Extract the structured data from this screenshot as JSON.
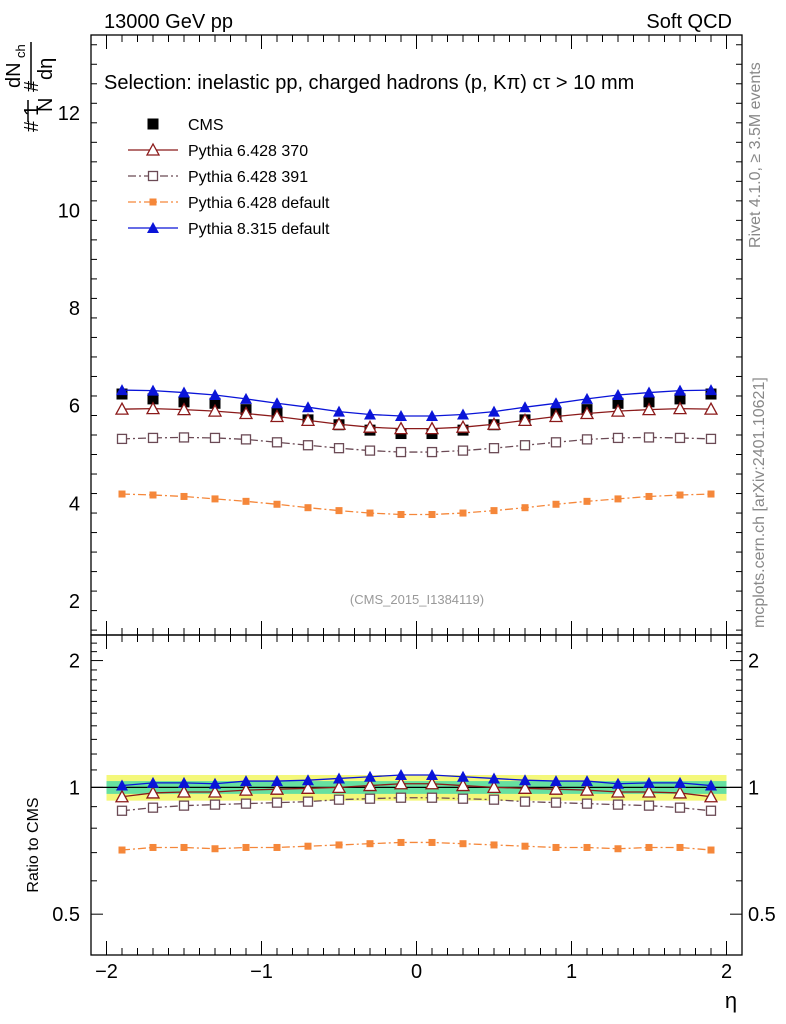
{
  "header": {
    "left": "13000 GeV pp",
    "right": "Soft QCD"
  },
  "selection_label": "Selection: inelastic pp, charged hadrons (p, Kπ) cτ > 10 mm",
  "side_labels": {
    "rivet": "Rivet 4.1.0, ≥ 3.5M events",
    "mcplots": "mcplots.cern.ch [arXiv:2401.10621]"
  },
  "analysis_tag": "(CMS_2015_I1384119)",
  "colors": {
    "cms": "#000000",
    "p370": "#8b1a1a",
    "p391": "#6b4a55",
    "p6def": "#f5873a",
    "p8def": "#0a14d8",
    "band_outer": "#f4f87a",
    "band_inner": "#66e0a0"
  },
  "chart_data": [
    {
      "type": "scatter",
      "panel": "main",
      "title": "",
      "xlabel": "η",
      "ylabel": "1/N dN_ch/dη",
      "xlim": [
        -2.1,
        2.1
      ],
      "ylim": [
        1.3,
        13.6
      ],
      "yticks": [
        "2",
        "4",
        "6",
        "8",
        "10",
        "12"
      ],
      "x": [
        -1.9,
        -1.7,
        -1.5,
        -1.3,
        -1.1,
        -0.9,
        -0.7,
        -0.5,
        -0.3,
        -0.1,
        0.1,
        0.3,
        0.5,
        0.7,
        0.9,
        1.1,
        1.3,
        1.5,
        1.7,
        1.9
      ],
      "series": [
        {
          "key": "cms",
          "name": "CMS",
          "marker": "filled-square",
          "values": [
            6.24,
            6.14,
            6.08,
            6.05,
            5.92,
            5.84,
            5.71,
            5.61,
            5.5,
            5.43,
            5.43,
            5.5,
            5.61,
            5.71,
            5.84,
            5.92,
            6.05,
            6.08,
            6.14,
            6.24
          ]
        },
        {
          "key": "p370",
          "name": "Pythia 6.428 370",
          "marker": "open-triangle",
          "dash": "",
          "values": [
            5.93,
            5.94,
            5.92,
            5.89,
            5.84,
            5.78,
            5.7,
            5.62,
            5.56,
            5.53,
            5.53,
            5.56,
            5.62,
            5.7,
            5.78,
            5.84,
            5.89,
            5.92,
            5.94,
            5.93
          ]
        },
        {
          "key": "p391",
          "name": "Pythia 6.428 391",
          "marker": "open-square",
          "dash": "8,3,2,3",
          "values": [
            5.32,
            5.34,
            5.35,
            5.34,
            5.31,
            5.25,
            5.19,
            5.13,
            5.08,
            5.05,
            5.05,
            5.08,
            5.13,
            5.19,
            5.25,
            5.31,
            5.34,
            5.35,
            5.34,
            5.32
          ]
        },
        {
          "key": "p6def",
          "name": "Pythia 6.428 default",
          "marker": "filled-square-small",
          "dash": "8,3,2,3",
          "values": [
            4.19,
            4.17,
            4.14,
            4.09,
            4.04,
            3.98,
            3.91,
            3.85,
            3.8,
            3.77,
            3.77,
            3.8,
            3.85,
            3.91,
            3.98,
            4.04,
            4.09,
            4.14,
            4.17,
            4.19
          ]
        },
        {
          "key": "p8def",
          "name": "Pythia 8.315 default",
          "marker": "filled-triangle",
          "dash": "",
          "values": [
            6.32,
            6.31,
            6.27,
            6.22,
            6.14,
            6.05,
            5.97,
            5.88,
            5.82,
            5.79,
            5.79,
            5.82,
            5.88,
            5.97,
            6.05,
            6.14,
            6.22,
            6.27,
            6.31,
            6.32
          ]
        }
      ]
    },
    {
      "type": "scatter",
      "panel": "ratio",
      "xlabel": "η",
      "ylabel": "Ratio to CMS",
      "xlim": [
        -2.1,
        2.1
      ],
      "ylim": [
        0.4,
        2.3
      ],
      "log_y": true,
      "yticks": [
        "0.5",
        "1",
        "2"
      ],
      "xticks": [
        "−2",
        "−1",
        "0",
        "1",
        "2"
      ],
      "band_outer": [
        0.93,
        1.07
      ],
      "band_inner": [
        0.965,
        1.035
      ],
      "x": [
        -1.9,
        -1.7,
        -1.5,
        -1.3,
        -1.1,
        -0.9,
        -0.7,
        -0.5,
        -0.3,
        -0.1,
        0.1,
        0.3,
        0.5,
        0.7,
        0.9,
        1.1,
        1.3,
        1.5,
        1.7,
        1.9
      ],
      "series": [
        {
          "key": "p370",
          "name": "Pythia 6.428 370",
          "values": [
            0.95,
            0.97,
            0.975,
            0.975,
            0.985,
            0.99,
            0.995,
            1.0,
            1.01,
            1.02,
            1.02,
            1.01,
            1.0,
            0.995,
            0.99,
            0.985,
            0.975,
            0.975,
            0.97,
            0.95
          ]
        },
        {
          "key": "p391",
          "name": "Pythia 6.428 391",
          "values": [
            0.88,
            0.895,
            0.905,
            0.91,
            0.915,
            0.92,
            0.925,
            0.935,
            0.94,
            0.945,
            0.945,
            0.94,
            0.935,
            0.925,
            0.92,
            0.915,
            0.91,
            0.905,
            0.895,
            0.88
          ]
        },
        {
          "key": "p6def",
          "name": "Pythia 6.428 default",
          "values": [
            0.71,
            0.72,
            0.72,
            0.715,
            0.72,
            0.72,
            0.725,
            0.73,
            0.735,
            0.74,
            0.74,
            0.735,
            0.73,
            0.725,
            0.72,
            0.72,
            0.715,
            0.72,
            0.72,
            0.71
          ]
        },
        {
          "key": "p8def",
          "name": "Pythia 8.315 default",
          "values": [
            1.01,
            1.025,
            1.025,
            1.02,
            1.035,
            1.035,
            1.04,
            1.05,
            1.06,
            1.07,
            1.07,
            1.06,
            1.05,
            1.04,
            1.035,
            1.035,
            1.02,
            1.025,
            1.025,
            1.01
          ]
        }
      ]
    }
  ]
}
